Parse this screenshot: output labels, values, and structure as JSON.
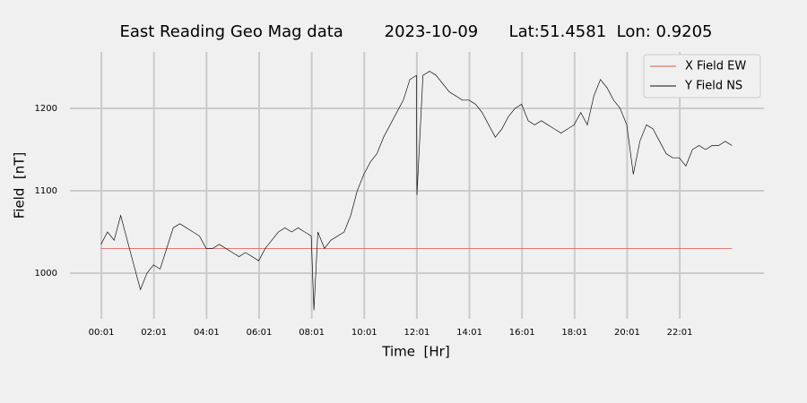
{
  "chart_data": {
    "type": "line",
    "title": "East Reading Geo Mag data        2023-10-09      Lat:51.4581  Lon: 0.9205",
    "x_label": "Time  [Hr]",
    "y_label": "Field  [nT]",
    "xlim": [
      -1.18,
      25.22
    ],
    "ylim": [
      944.6,
      1268.5
    ],
    "xticks": [
      {
        "value": 0.0167,
        "label": "00:01"
      },
      {
        "value": 2.0167,
        "label": "02:01"
      },
      {
        "value": 4.0167,
        "label": "04:01"
      },
      {
        "value": 6.0167,
        "label": "06:01"
      },
      {
        "value": 8.0167,
        "label": "08:01"
      },
      {
        "value": 10.0167,
        "label": "10:01"
      },
      {
        "value": 12.0167,
        "label": "12:01"
      },
      {
        "value": 14.0167,
        "label": "14:01"
      },
      {
        "value": 16.0167,
        "label": "16:01"
      },
      {
        "value": 18.0167,
        "label": "18:01"
      },
      {
        "value": 20.0167,
        "label": "20:01"
      },
      {
        "value": 22.0167,
        "label": "22:01"
      }
    ],
    "yticks": [
      1000,
      1100,
      1200
    ],
    "grid": true,
    "legend": "upper right",
    "series": [
      {
        "name": "X Field EW",
        "color": "#e5533d",
        "x": [
          0,
          24
        ],
        "values": [
          1030,
          1030
        ]
      },
      {
        "name": "Y Field NS",
        "color": "#111111",
        "x": [
          0,
          0.25,
          0.5,
          0.75,
          1,
          1.25,
          1.5,
          1.75,
          2,
          2.25,
          2.5,
          2.75,
          3,
          3.25,
          3.5,
          3.75,
          4,
          4.25,
          4.5,
          4.75,
          5,
          5.25,
          5.5,
          5.75,
          6,
          6.25,
          6.5,
          6.75,
          7,
          7.25,
          7.5,
          7.75,
          8,
          8.1,
          8.25,
          8.5,
          8.75,
          9,
          9.25,
          9.5,
          9.75,
          10,
          10.25,
          10.5,
          10.75,
          11,
          11.25,
          11.5,
          11.75,
          12,
          12.02,
          12.25,
          12.5,
          12.75,
          13,
          13.25,
          13.5,
          13.75,
          14,
          14.25,
          14.5,
          14.75,
          15,
          15.25,
          15.5,
          15.75,
          16,
          16.25,
          16.5,
          16.75,
          17,
          17.25,
          17.5,
          17.75,
          18,
          18.25,
          18.5,
          18.75,
          19,
          19.25,
          19.5,
          19.75,
          20,
          20.25,
          20.5,
          20.75,
          21,
          21.25,
          21.5,
          21.75,
          22,
          22.25,
          22.5,
          22.75,
          23,
          23.25,
          23.5,
          23.75,
          24
        ],
        "values": [
          1035,
          1050,
          1040,
          1070,
          1040,
          1010,
          980,
          1000,
          1010,
          1005,
          1030,
          1055,
          1060,
          1055,
          1050,
          1045,
          1030,
          1030,
          1035,
          1030,
          1025,
          1020,
          1025,
          1020,
          1015,
          1030,
          1040,
          1050,
          1055,
          1050,
          1055,
          1050,
          1045,
          955,
          1050,
          1030,
          1040,
          1045,
          1050,
          1070,
          1100,
          1120,
          1135,
          1145,
          1165,
          1180,
          1195,
          1210,
          1235,
          1240,
          1095,
          1240,
          1245,
          1240,
          1230,
          1220,
          1215,
          1210,
          1210,
          1205,
          1195,
          1180,
          1165,
          1175,
          1190,
          1200,
          1205,
          1185,
          1180,
          1185,
          1180,
          1175,
          1170,
          1175,
          1180,
          1195,
          1180,
          1215,
          1235,
          1225,
          1210,
          1200,
          1180,
          1120,
          1160,
          1180,
          1175,
          1160,
          1145,
          1140,
          1140,
          1130,
          1150,
          1155,
          1150,
          1155,
          1155,
          1160,
          1155
        ]
      }
    ]
  }
}
